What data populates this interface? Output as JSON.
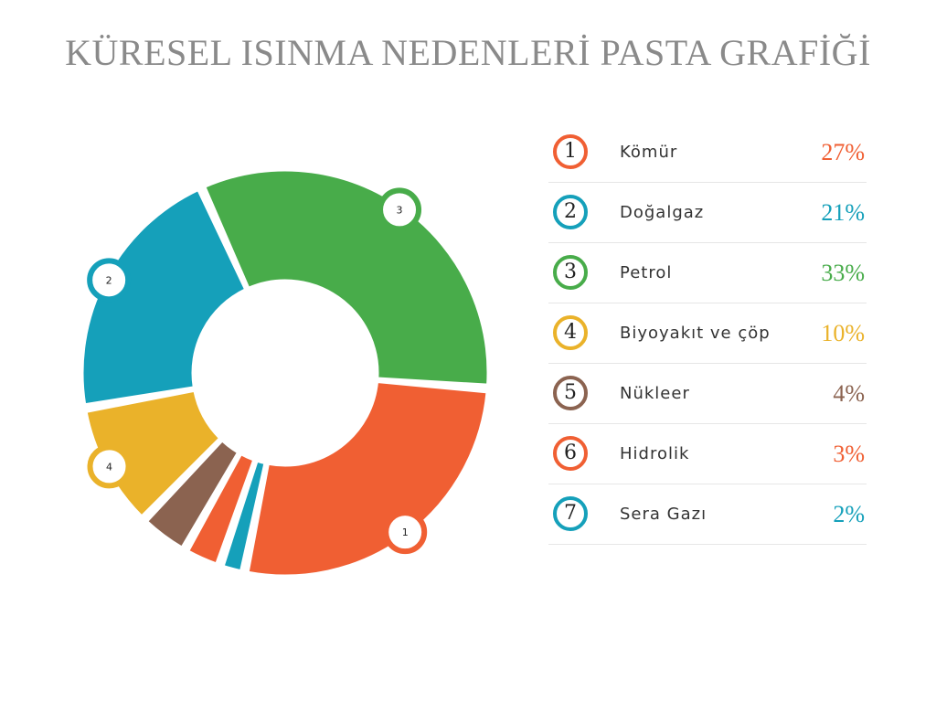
{
  "title": "KÜRESEL ISINMA NEDENLERİ PASTA GRAFİĞİ",
  "chart_data": {
    "type": "pie",
    "title": "KÜRESEL ISINMA NEDENLERİ PASTA GRAFİĞİ",
    "categories": [
      "Kömür",
      "Doğalgaz",
      "Petrol",
      "Biyoyakıt ve çöp",
      "Nükleer",
      "Hidrolik",
      "Sera Gazı"
    ],
    "values": [
      27,
      21,
      33,
      10,
      4,
      3,
      2
    ],
    "value_labels": [
      "27%",
      "21%",
      "33%",
      "10%",
      "4%",
      "3%",
      "2%"
    ],
    "numbers": [
      "1",
      "2",
      "3",
      "4",
      "5",
      "6",
      "7"
    ],
    "colors": [
      "#F05F33",
      "#15A0BA",
      "#48AC4A",
      "#EAB22A",
      "#8B6350",
      "#F05F33",
      "#15A0BA"
    ],
    "slice_order": [
      1,
      2,
      0,
      6,
      5,
      4,
      3
    ],
    "marker_labels": [
      "1",
      "2",
      "3",
      "4"
    ],
    "legend": "right",
    "style": "donut"
  }
}
